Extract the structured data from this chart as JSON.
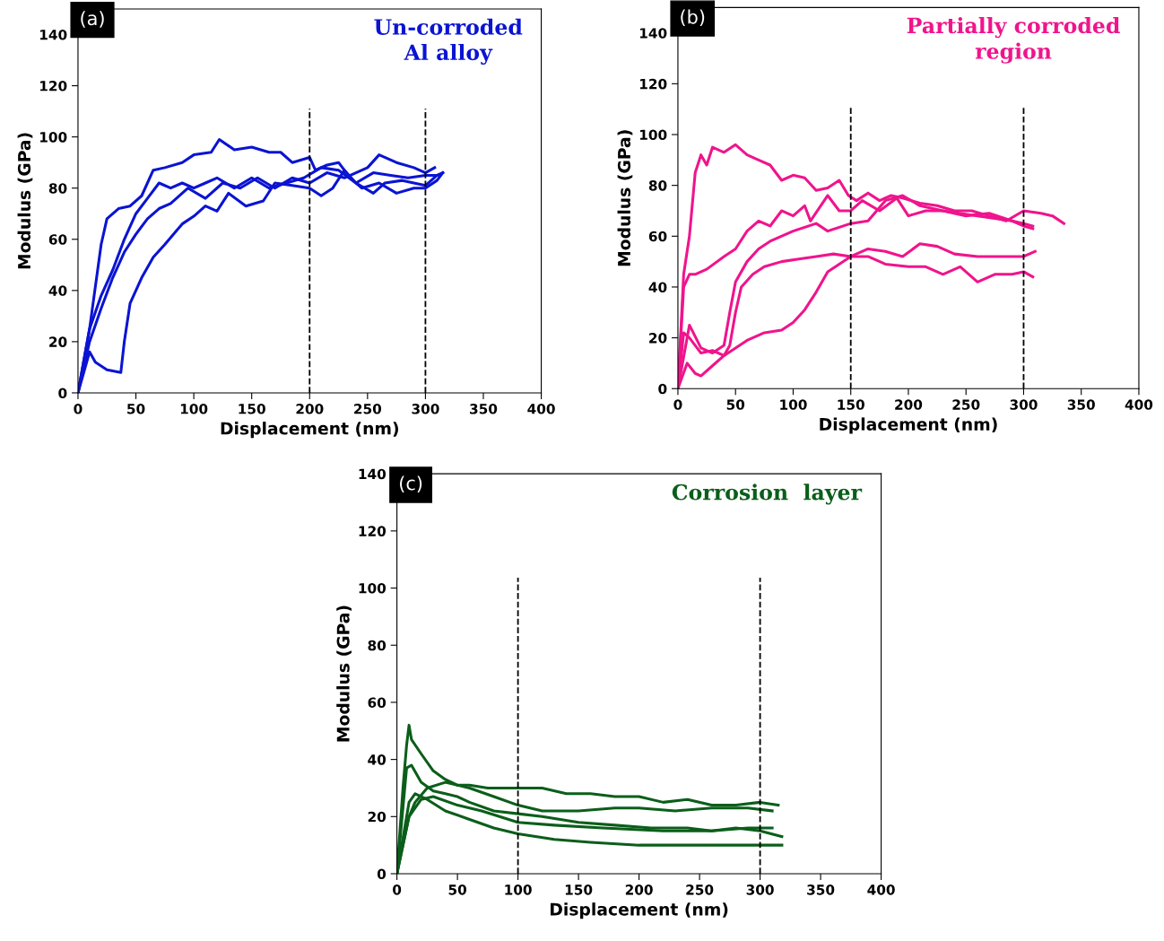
{
  "chart_data": [
    {
      "type": "line",
      "title": "Un-corroded\nAl alloy",
      "xlabel": "Displacement (nm)",
      "ylabel": "Modulus (GPa)",
      "annotations": [
        "(a)"
      ],
      "xlim": [
        0,
        400
      ],
      "ylim": [
        0,
        150
      ],
      "xticks": [
        0,
        50,
        100,
        150,
        200,
        250,
        300,
        350,
        400
      ],
      "yticks": [
        0,
        20,
        40,
        60,
        80,
        100,
        120,
        140
      ],
      "grid": false,
      "ref_lines": [
        {
          "axis": "x",
          "value": 200,
          "color": "#000000",
          "line_style": "dashed"
        },
        {
          "axis": "x",
          "value": 300,
          "color": "#000000",
          "line_style": "dashed"
        }
      ],
      "series": [
        {
          "color": "#0a14d2",
          "x": [
            0,
            10,
            20,
            25,
            35,
            45,
            55,
            65,
            75,
            90,
            100,
            115,
            122,
            135,
            150,
            165,
            175,
            185,
            200,
            205,
            215,
            225,
            235,
            245,
            260,
            275,
            290,
            300,
            310,
            315
          ],
          "values": [
            0,
            25,
            58,
            68,
            72,
            73,
            77,
            87,
            88,
            90,
            93,
            94,
            99,
            95,
            96,
            94,
            94,
            90,
            92,
            87,
            89,
            90,
            84,
            80,
            82,
            78,
            80,
            80,
            83,
            86
          ]
        },
        {
          "color": "#0a14d2",
          "x": [
            0,
            10,
            15,
            25,
            37,
            40,
            45,
            55,
            65,
            75,
            90,
            100,
            110,
            120,
            130,
            145,
            160,
            170,
            185,
            200,
            210,
            220,
            230,
            240,
            255,
            265,
            280,
            290,
            300,
            310,
            315
          ],
          "values": [
            0,
            16,
            12,
            9,
            8,
            20,
            35,
            45,
            53,
            58,
            66,
            69,
            73,
            71,
            78,
            73,
            75,
            82,
            81,
            80,
            77,
            80,
            87,
            82,
            78,
            82,
            83,
            82,
            81,
            85,
            86
          ]
        },
        {
          "color": "#0a14d2",
          "x": [
            0,
            10,
            20,
            30,
            40,
            50,
            60,
            70,
            80,
            90,
            100,
            110,
            120,
            135,
            150,
            165,
            180,
            195,
            210,
            225,
            240,
            255,
            270,
            285,
            300,
            310
          ],
          "values": [
            0,
            25,
            38,
            48,
            60,
            70,
            76,
            82,
            80,
            82,
            80,
            82,
            84,
            80,
            84,
            80,
            82,
            84,
            88,
            87,
            82,
            86,
            85,
            84,
            85,
            85
          ]
        },
        {
          "color": "#0a14d2",
          "x": [
            0,
            10,
            20,
            30,
            40,
            50,
            60,
            70,
            80,
            95,
            110,
            125,
            140,
            155,
            170,
            185,
            200,
            215,
            230,
            250,
            260,
            275,
            290,
            300,
            308
          ],
          "values": [
            0,
            20,
            33,
            45,
            55,
            62,
            68,
            72,
            74,
            80,
            76,
            82,
            80,
            84,
            80,
            84,
            82,
            86,
            84,
            88,
            93,
            90,
            88,
            86,
            88
          ]
        }
      ]
    },
    {
      "type": "line",
      "title": "Partially corroded\nregion",
      "xlabel": "Displacement (nm)",
      "ylabel": "Modulus (GPa)",
      "annotations": [
        "(b)"
      ],
      "xlim": [
        0,
        400
      ],
      "ylim": [
        0,
        150
      ],
      "xticks": [
        0,
        50,
        100,
        150,
        200,
        250,
        300,
        350,
        400
      ],
      "yticks": [
        0,
        20,
        40,
        60,
        80,
        100,
        120,
        140
      ],
      "grid": false,
      "ref_lines": [
        {
          "axis": "x",
          "value": 150,
          "color": "#000000",
          "line_style": "dashed"
        },
        {
          "axis": "x",
          "value": 300,
          "color": "#000000",
          "line_style": "dashed"
        }
      ],
      "series": [
        {
          "color": "#f0148c",
          "x": [
            0,
            5,
            10,
            15,
            20,
            25,
            30,
            40,
            50,
            60,
            70,
            80,
            90,
            100,
            110,
            120,
            130,
            140,
            148,
            155,
            165,
            175,
            185,
            195,
            210,
            225,
            240,
            255,
            270,
            285,
            300,
            315,
            325,
            335
          ],
          "values": [
            0,
            45,
            60,
            85,
            92,
            88,
            95,
            93,
            96,
            92,
            90,
            88,
            82,
            84,
            83,
            78,
            79,
            82,
            76,
            74,
            77,
            74,
            76,
            75,
            73,
            72,
            70,
            70,
            68,
            66,
            70,
            69,
            68,
            65
          ]
        },
        {
          "color": "#f0148c",
          "x": [
            0,
            5,
            10,
            15,
            25,
            40,
            50,
            60,
            70,
            80,
            90,
            100,
            110,
            115,
            130,
            140,
            150,
            160,
            175,
            190,
            200,
            215,
            230,
            250,
            270,
            290,
            300,
            308
          ],
          "values": [
            0,
            40,
            45,
            45,
            47,
            52,
            55,
            62,
            66,
            64,
            70,
            68,
            72,
            66,
            76,
            70,
            70,
            74,
            70,
            75,
            68,
            70,
            70,
            68,
            69,
            66,
            65,
            64
          ]
        },
        {
          "color": "#f0148c",
          "x": [
            0,
            10,
            20,
            30,
            40,
            45,
            50,
            60,
            70,
            80,
            100,
            120,
            130,
            150,
            165,
            180,
            195,
            210,
            230,
            260,
            290,
            300,
            308
          ],
          "values": [
            0,
            25,
            16,
            14,
            17,
            30,
            42,
            50,
            55,
            58,
            62,
            65,
            62,
            65,
            66,
            74,
            76,
            72,
            70,
            68,
            66,
            64,
            63
          ]
        },
        {
          "color": "#f0148c",
          "x": [
            0,
            5,
            10,
            15,
            20,
            30,
            40,
            45,
            50,
            55,
            65,
            75,
            90,
            105,
            120,
            135,
            150,
            165,
            180,
            195,
            210,
            225,
            240,
            260,
            280,
            300,
            310
          ],
          "values": [
            0,
            22,
            20,
            17,
            14,
            15,
            13,
            17,
            30,
            40,
            45,
            48,
            50,
            51,
            52,
            53,
            52,
            55,
            54,
            52,
            57,
            56,
            53,
            52,
            52,
            52,
            54
          ]
        },
        {
          "color": "#f0148c",
          "x": [
            0,
            8,
            15,
            20,
            30,
            40,
            50,
            60,
            75,
            90,
            100,
            110,
            120,
            130,
            140,
            150,
            165,
            180,
            200,
            215,
            230,
            245,
            260,
            275,
            290,
            300,
            308
          ],
          "values": [
            0,
            10,
            6,
            5,
            9,
            13,
            16,
            19,
            22,
            23,
            26,
            31,
            38,
            46,
            49,
            52,
            52,
            49,
            48,
            48,
            45,
            48,
            42,
            45,
            45,
            46,
            44
          ]
        }
      ]
    },
    {
      "type": "line",
      "title": "Corrosion  layer",
      "xlabel": "Displacement (nm)",
      "ylabel": "Modulus (GPa)",
      "annotations": [
        "(c)"
      ],
      "xlim": [
        0,
        400
      ],
      "ylim": [
        0,
        140
      ],
      "xticks": [
        0,
        50,
        100,
        150,
        200,
        250,
        300,
        350,
        400
      ],
      "yticks": [
        0,
        20,
        40,
        60,
        80,
        100,
        120,
        140
      ],
      "grid": false,
      "ref_lines": [
        {
          "axis": "x",
          "value": 100,
          "color": "#000000",
          "line_style": "dashed"
        },
        {
          "axis": "x",
          "value": 300,
          "color": "#000000",
          "line_style": "dashed"
        }
      ],
      "series": [
        {
          "color": "#0b5e1a",
          "x": [
            0,
            5,
            8,
            10,
            12,
            20,
            30,
            40,
            50,
            60,
            75,
            90,
            100,
            120,
            140,
            160,
            180,
            200,
            220,
            240,
            260,
            280,
            300,
            315
          ],
          "values": [
            0,
            30,
            45,
            52,
            47,
            42,
            36,
            33,
            31,
            31,
            30,
            30,
            30,
            30,
            28,
            28,
            27,
            27,
            25,
            26,
            24,
            24,
            25,
            24
          ]
        },
        {
          "color": "#0b5e1a",
          "x": [
            0,
            8,
            12,
            20,
            30,
            40,
            50,
            60,
            80,
            100,
            120,
            150,
            180,
            210,
            240,
            260,
            280,
            300,
            318
          ],
          "values": [
            0,
            37,
            38,
            32,
            29,
            28,
            27,
            25,
            22,
            21,
            20,
            18,
            17,
            16,
            16,
            15,
            16,
            15,
            13
          ]
        },
        {
          "color": "#0b5e1a",
          "x": [
            0,
            10,
            15,
            25,
            40,
            60,
            80,
            100,
            120,
            150,
            180,
            200,
            230,
            260,
            290,
            310
          ],
          "values": [
            0,
            20,
            25,
            30,
            32,
            30,
            27,
            24,
            22,
            22,
            23,
            23,
            22,
            23,
            23,
            22
          ]
        },
        {
          "color": "#0b5e1a",
          "x": [
            0,
            10,
            20,
            30,
            50,
            70,
            100,
            130,
            170,
            220,
            260,
            290,
            310
          ],
          "values": [
            0,
            20,
            26,
            27,
            24,
            22,
            18,
            17,
            16,
            15,
            15,
            16,
            16
          ]
        },
        {
          "color": "#0b5e1a",
          "x": [
            0,
            10,
            15,
            25,
            40,
            60,
            80,
            100,
            130,
            160,
            200,
            250,
            300,
            318
          ],
          "values": [
            0,
            25,
            28,
            26,
            22,
            19,
            16,
            14,
            12,
            11,
            10,
            10,
            10,
            10
          ]
        }
      ]
    }
  ]
}
